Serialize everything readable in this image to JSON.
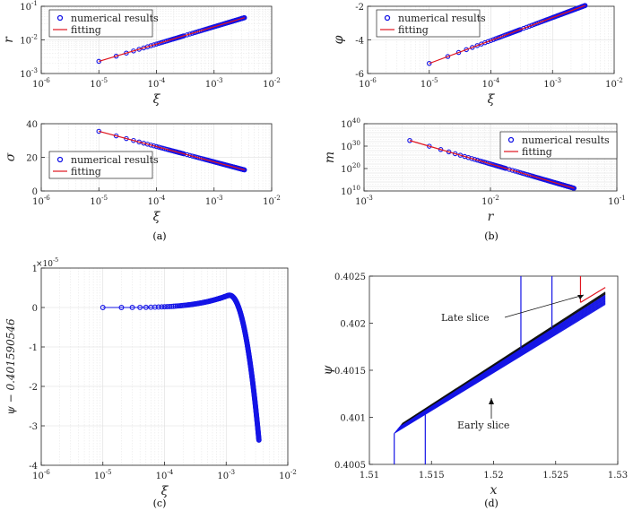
{
  "chart_data": [
    {
      "id": "r_xi",
      "type": "scatter",
      "xscale": "log",
      "yscale": "log",
      "xlim": [
        1e-06,
        0.01
      ],
      "ylim": [
        0.001,
        0.1
      ],
      "xticks": [
        "10^-6",
        "10^-5",
        "10^-4",
        "10^-3",
        "10^-2"
      ],
      "yticks": [
        "10^-3",
        "10^-2",
        "10^-1"
      ],
      "xlabel": "ξ",
      "ylabel": "r",
      "legend": {
        "position": "top-left",
        "items": [
          "numerical results",
          "fitting"
        ]
      },
      "grid": true,
      "series": [
        {
          "name": "numerical results",
          "kind": "markers",
          "x_range": [
            1e-05,
            0.0034
          ],
          "y_range": [
            0.0023,
            0.046
          ]
        },
        {
          "name": "fitting",
          "kind": "line",
          "x_range": [
            1e-05,
            0.0034
          ],
          "y_range": [
            0.0023,
            0.046
          ]
        }
      ]
    },
    {
      "id": "phi_xi",
      "type": "scatter",
      "xscale": "log",
      "yscale": "linear",
      "xlim": [
        1e-06,
        0.01
      ],
      "ylim": [
        -6,
        -2
      ],
      "xticks": [
        "10^-6",
        "10^-5",
        "10^-4",
        "10^-3",
        "10^-2"
      ],
      "yticks": [
        "-6",
        "-4",
        "-2"
      ],
      "xlabel": "ξ",
      "ylabel": "φ",
      "legend": {
        "position": "top-left",
        "items": [
          "numerical results",
          "fitting"
        ]
      },
      "grid": true,
      "series": [
        {
          "name": "numerical results",
          "kind": "markers",
          "x_range": [
            1e-05,
            0.0034
          ],
          "y_range": [
            -5.4,
            -1.95
          ]
        },
        {
          "name": "fitting",
          "kind": "line",
          "x_range": [
            1e-05,
            0.0034
          ],
          "y_range": [
            -5.4,
            -1.95
          ]
        }
      ]
    },
    {
      "id": "sigma_xi",
      "type": "scatter",
      "xscale": "log",
      "yscale": "linear",
      "xlim": [
        1e-06,
        0.01
      ],
      "ylim": [
        0,
        40
      ],
      "xticks": [
        "10^-6",
        "10^-5",
        "10^-4",
        "10^-3",
        "10^-2"
      ],
      "yticks": [
        "0",
        "20",
        "40"
      ],
      "xlabel": "ξ",
      "ylabel": "σ",
      "legend": {
        "position": "bottom-left",
        "items": [
          "numerical results",
          "fitting"
        ]
      },
      "grid": true,
      "series": [
        {
          "name": "numerical results",
          "kind": "markers",
          "x_range": [
            1e-05,
            0.0034
          ],
          "y_range": [
            35.5,
            12.5
          ]
        },
        {
          "name": "fitting",
          "kind": "line",
          "x_range": [
            1e-05,
            0.0034
          ],
          "y_range": [
            35.5,
            12.5
          ]
        }
      ]
    },
    {
      "id": "m_r",
      "type": "scatter",
      "xscale": "log",
      "yscale": "log",
      "xlim": [
        0.001,
        0.1
      ],
      "ylim": [
        10000000000.0,
        1e+40
      ],
      "xticks": [
        "10^-3",
        "10^-2",
        "10^-1"
      ],
      "yticks": [
        "10^10",
        "10^20",
        "10^30",
        "10^40"
      ],
      "xlabel": "r",
      "ylabel": "m",
      "legend": {
        "position": "top-right",
        "items": [
          "numerical results",
          "fitting"
        ]
      },
      "grid": true,
      "series": [
        {
          "name": "numerical results",
          "kind": "markers",
          "x_range": [
            0.0023,
            0.046
          ],
          "y_exp_range": [
            32.5,
            11.2
          ]
        },
        {
          "name": "fitting",
          "kind": "line",
          "x_range": [
            0.0023,
            0.046
          ],
          "y_exp_range": [
            32.5,
            11.2
          ]
        }
      ]
    },
    {
      "id": "psi_xi",
      "type": "scatter",
      "xscale": "log",
      "yscale": "linear",
      "xlim": [
        1e-06,
        0.01
      ],
      "ylim": [
        -4,
        1
      ],
      "xticks": [
        "10^-6",
        "10^-5",
        "10^-4",
        "10^-3",
        "10^-2"
      ],
      "yticks": [
        "-4",
        "-3",
        "-2",
        "-1",
        "0",
        "1"
      ],
      "exponent_label": "×10^-5",
      "xlabel": "ξ",
      "ylabel": "ψ − 0.401590546",
      "grid": true,
      "series": [
        {
          "kind": "markers+line",
          "x_range": [
            1e-05,
            0.0034
          ],
          "peak": {
            "x": 0.00105,
            "y": 0.3
          },
          "end_y": -3.8
        }
      ]
    },
    {
      "id": "psi_x",
      "type": "line",
      "xscale": "linear",
      "yscale": "linear",
      "xlim": [
        1.51,
        1.53
      ],
      "ylim": [
        0.4005,
        0.4025
      ],
      "xticks": [
        "1.51",
        "1.515",
        "1.52",
        "1.525",
        "1.53"
      ],
      "yticks": [
        "0.4005",
        "0.401",
        "0.4015",
        "0.402",
        "0.4025"
      ],
      "xlabel": "x",
      "ylabel": "ψ",
      "grid": false,
      "lines": {
        "start": [
          1.512,
          0.40083
        ],
        "end": [
          1.529,
          0.40232
        ]
      },
      "annotations": [
        "Late slice",
        "Early slice"
      ]
    }
  ],
  "captions": [
    "(a)",
    "(b)",
    "(c)",
    "(d)"
  ],
  "colors": {
    "marker": "#1414e6",
    "fit": "#e0141e",
    "axis": "#262626",
    "grid": "#dcdcdc"
  }
}
